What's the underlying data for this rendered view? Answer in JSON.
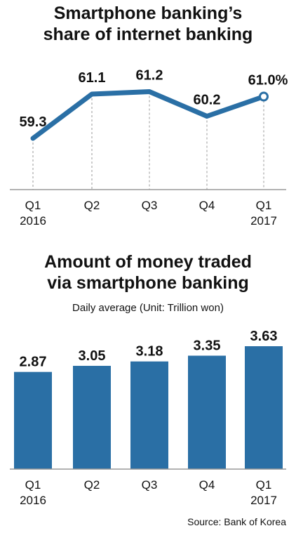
{
  "source": "Source: Bank of Korea",
  "colors": {
    "accent": "#2a6fa5",
    "axis": "#999999"
  },
  "chart_data": [
    {
      "type": "line",
      "title_line1": "Smartphone banking’s",
      "title_line2": "share of internet banking",
      "categories": [
        [
          "Q1",
          "2016"
        ],
        [
          "Q2",
          ""
        ],
        [
          "Q3",
          ""
        ],
        [
          "Q4",
          ""
        ],
        [
          "Q1",
          "2017"
        ]
      ],
      "values": [
        59.3,
        61.1,
        61.2,
        60.2,
        61.0
      ],
      "data_labels": [
        "59.3",
        "61.1",
        "61.2",
        "60.2",
        "61.0%"
      ],
      "ylim": [
        57.5,
        62.5
      ],
      "grid": false
    },
    {
      "type": "bar",
      "title_line1": "Amount of money traded",
      "title_line2": "via smartphone banking",
      "subtitle": "Daily average (Unit: Trillion won)",
      "categories": [
        [
          "Q1",
          "2016"
        ],
        [
          "Q2",
          ""
        ],
        [
          "Q3",
          ""
        ],
        [
          "Q4",
          ""
        ],
        [
          "Q1",
          "2017"
        ]
      ],
      "values": [
        2.87,
        3.05,
        3.18,
        3.35,
        3.63
      ],
      "data_labels": [
        "2.87",
        "3.05",
        "3.18",
        "3.35",
        "3.63"
      ],
      "ylim": [
        0,
        3.63
      ],
      "grid": false
    }
  ]
}
